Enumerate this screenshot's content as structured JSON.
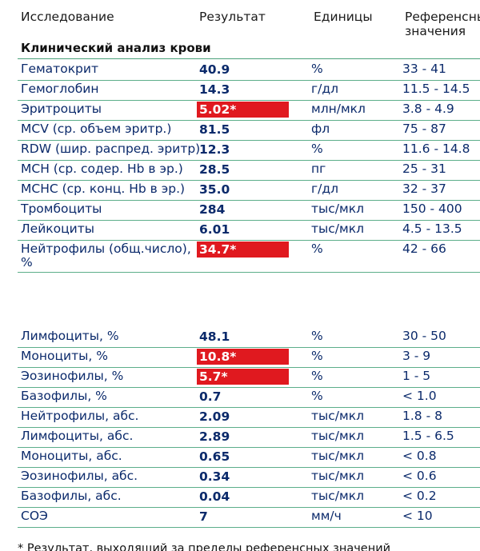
{
  "header": {
    "name": "Исследование",
    "result": "Результат",
    "unit": "Единицы",
    "reference": "Референсные значения"
  },
  "section": {
    "title": "Клинический анализ крови"
  },
  "rows_group1": [
    {
      "name": "Гематокрит",
      "value": "40.9",
      "unit": "%",
      "ref": "33 - 41",
      "flag": false
    },
    {
      "name": "Гемоглобин",
      "value": "14.3",
      "unit": "г/дл",
      "ref": "11.5 - 14.5",
      "flag": false
    },
    {
      "name": "Эритроциты",
      "value": "5.02*",
      "unit": "млн/мкл",
      "ref": "3.8 - 4.9",
      "flag": true
    },
    {
      "name": "MCV (ср. объем эритр.)",
      "value": "81.5",
      "unit": "фл",
      "ref": "75 - 87",
      "flag": false
    },
    {
      "name": "RDW (шир. распред. эритр)",
      "value": "12.3",
      "unit": "%",
      "ref": "11.6 - 14.8",
      "flag": false
    },
    {
      "name": "MCH (ср. содер. Hb в эр.)",
      "value": "28.5",
      "unit": "пг",
      "ref": "25 - 31",
      "flag": false
    },
    {
      "name": "MCHC (ср. конц. Hb в эр.)",
      "value": "35.0",
      "unit": "г/дл",
      "ref": "32 - 37",
      "flag": false
    },
    {
      "name": "Тромбоциты",
      "value": "284",
      "unit": "тыс/мкл",
      "ref": "150 - 400",
      "flag": false
    },
    {
      "name": "Лейкоциты",
      "value": "6.01",
      "unit": "тыс/мкл",
      "ref": "4.5 - 13.5",
      "flag": false
    },
    {
      "name": "Нейтрофилы (общ.число), %",
      "value": "34.7*",
      "unit": "%",
      "ref": "42 - 66",
      "flag": true
    }
  ],
  "rows_group2": [
    {
      "name": "Лимфоциты, %",
      "value": "48.1",
      "unit": "%",
      "ref": "30 - 50",
      "flag": false
    },
    {
      "name": "Моноциты, %",
      "value": "10.8*",
      "unit": "%",
      "ref": "3 - 9",
      "flag": true
    },
    {
      "name": "Эозинофилы, %",
      "value": "5.7*",
      "unit": "%",
      "ref": "1 - 5",
      "flag": true
    },
    {
      "name": "Базофилы, %",
      "value": "0.7",
      "unit": "%",
      "ref": "< 1.0",
      "flag": false
    },
    {
      "name": "Нейтрофилы, абс.",
      "value": "2.09",
      "unit": "тыс/мкл",
      "ref": "1.8 - 8",
      "flag": false
    },
    {
      "name": "Лимфоциты, абс.",
      "value": "2.89",
      "unit": "тыс/мкл",
      "ref": "1.5 - 6.5",
      "flag": false
    },
    {
      "name": "Моноциты, абс.",
      "value": "0.65",
      "unit": "тыс/мкл",
      "ref": "< 0.8",
      "flag": false
    },
    {
      "name": "Эозинофилы, абс.",
      "value": "0.34",
      "unit": "тыс/мкл",
      "ref": "< 0.6",
      "flag": false
    },
    {
      "name": "Базофилы, абс.",
      "value": "0.04",
      "unit": "тыс/мкл",
      "ref": "< 0.2",
      "flag": false
    },
    {
      "name": "СОЭ",
      "value": "7",
      "unit": "мм/ч",
      "ref": "< 10",
      "flag": false
    }
  ],
  "footnote": "* Результат, выходящий за пределы референсных значений",
  "colors": {
    "flag_bg": "#e0191f",
    "row_line": "#5cae8a",
    "text": "#0b2a6b"
  }
}
